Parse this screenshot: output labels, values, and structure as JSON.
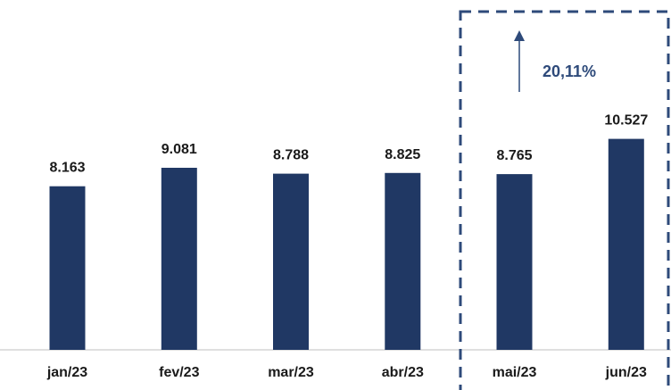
{
  "chart_data": {
    "type": "bar",
    "categories": [
      "jan/23",
      "fev/23",
      "mar/23",
      "abr/23",
      "mai/23",
      "jun/23"
    ],
    "values": [
      8163,
      9081,
      8788,
      8825,
      8765,
      10527
    ],
    "value_labels": [
      "8.163",
      "9.081",
      "8.788",
      "8.825",
      "8.765",
      "10.527"
    ],
    "title": "",
    "xlabel": "",
    "ylabel": "",
    "ylim": [
      0,
      12000
    ],
    "grid": false,
    "legend": "none",
    "annotation": {
      "text": "20,11%",
      "highlighted_categories": [
        "mai/23",
        "jun/23"
      ],
      "arrow": "up"
    },
    "colors": {
      "bar": "#203864",
      "annotation": "#2e4a7a",
      "axis": "#bfbfbf"
    }
  }
}
